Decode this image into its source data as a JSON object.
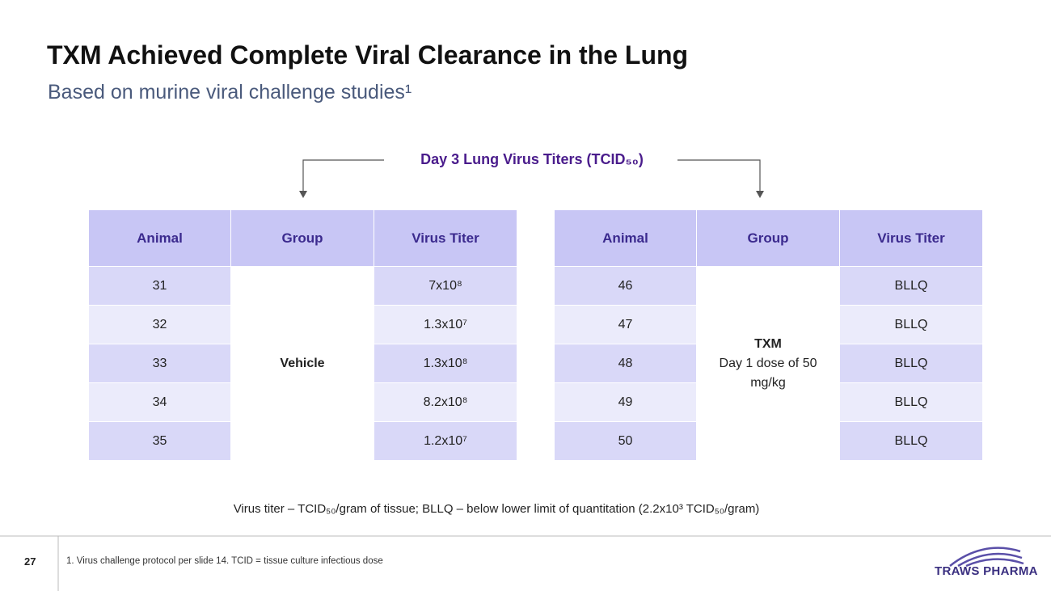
{
  "header": {
    "title": "TXM Achieved Complete Viral Clearance in the Lung",
    "subtitle": "Based on murine viral challenge studies¹"
  },
  "table_title": "Day 3 Lung Virus Titers (TCID₅₀)",
  "tables": [
    {
      "columns": [
        "Animal",
        "Group",
        "Virus Titer"
      ],
      "group_title": "Vehicle",
      "rows": [
        [
          "31",
          "7x10⁸"
        ],
        [
          "32",
          "1.3x10⁷"
        ],
        [
          "33",
          "1.3x10⁸"
        ],
        [
          "34",
          "8.2x10⁸"
        ],
        [
          "35",
          "1.2x10⁷"
        ]
      ]
    },
    {
      "columns": [
        "Animal",
        "Group",
        "Virus Titer"
      ],
      "group_title": "TXM",
      "group_detail": "Day 1 dose of 50 mg/kg",
      "rows": [
        [
          "46",
          "BLLQ"
        ],
        [
          "47",
          "BLLQ"
        ],
        [
          "48",
          "BLLQ"
        ],
        [
          "49",
          "BLLQ"
        ],
        [
          "50",
          "BLLQ"
        ]
      ]
    }
  ],
  "note": "Virus titer – TCID₅₀/gram of tissue; BLLQ – below lower limit of quantitation (2.2x10³ TCID₅₀/gram)",
  "footer": {
    "page": "27",
    "footnote": "1. Virus challenge protocol per slide 14. TCID = tissue culture infectious dose",
    "logo": "TRAWS PHARMA"
  }
}
